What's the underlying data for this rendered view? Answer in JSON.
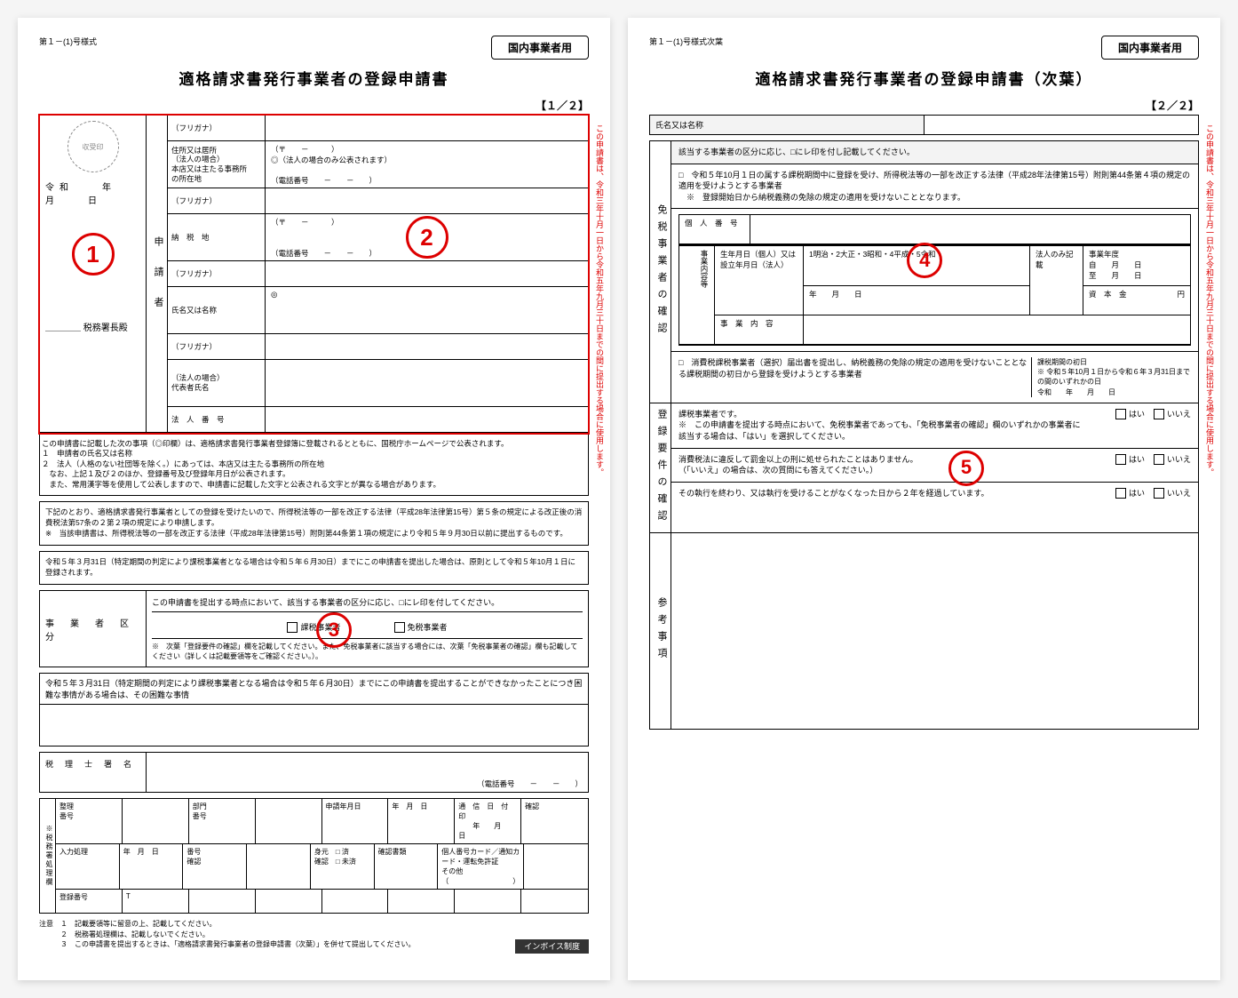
{
  "page1": {
    "form_id": "第１－(1)号様式",
    "tag": "国内事業者用",
    "title": "適格請求書発行事業者の登録申請書",
    "bracket": "【１／２】",
    "stamp_label": "収受印",
    "date_line": "令和　　年　　月　　日",
    "circle1": "1",
    "tax_office_line": "＿＿＿＿ 税務署長殿",
    "vlabel_applicant": "申　請　者",
    "vlabel_right_red": "この申請書は、令和三年十月一日から令和五年九月三十日までの間に提出する場合に使用します。",
    "rows": [
      {
        "f": "（フリガナ）",
        "v": ""
      },
      {
        "f": "住所又は居所\n（法人の場合）\n本店又は主たる事務所\nの所在地",
        "v": "（〒　　－　　　）\n◎（法人の場合のみ公表されます）",
        "phone": "（電話番号　　－　　－　　）",
        "tall": true
      },
      {
        "f": "（フリガナ）",
        "v": ""
      },
      {
        "f": "納　税　地",
        "v": "（〒　　－　　　）",
        "phone": "（電話番号　　－　　－　　）",
        "circle": "2",
        "tall": true
      },
      {
        "f": "（フリガナ）",
        "v": ""
      },
      {
        "f": "氏名又は名称",
        "v": "◎",
        "tall": true
      },
      {
        "f": "（フリガナ）",
        "v": ""
      },
      {
        "f": "（法人の場合）\n代表者氏名",
        "v": "",
        "tall": true
      },
      {
        "f": "法　人　番　号",
        "v": ""
      }
    ],
    "publish_note": "この申請書に記載した次の事項（◎印欄）は、適格請求書発行事業者登録簿に登載されるとともに、国税庁ホームページで公表されます。\n１　申請者の氏名又は名称\n２　法人（人格のない社団等を除く。）にあっては、本店又は主たる事務所の所在地\n　なお、上記１及び２のほか、登録番号及び登録年月日が公表されます。\n　また、常用漢字等を使用して公表しますので、申請書に記載した文字と公表される文字とが異なる場合があります。",
    "apply_note": "下記のとおり、適格請求書発行事業者としての登録を受けたいので、所得税法等の一部を改正する法律（平成28年法律第15号）第５条の規定による改正後の消費税法第57条の２第２項の規定により申請します。\n※　当該申請書は、所得税法等の一部を改正する法律（平成28年法律第15号）附則第44条第１項の規定により令和５年９月30日以前に提出するものです。",
    "deadline_note": "令和５年３月31日（特定期間の判定により課税事業者となる場合は令和５年６月30日）までにこの申請書を提出した場合は、原則として令和５年10月１日に登録されます。",
    "classify_label": "事　業　者　区　分",
    "classify_head": "この申請書を提出する時点において、該当する事業者の区分に応じ、□にレ印を付してください。",
    "classify_opts": [
      "課税事業者",
      "免税事業者"
    ],
    "classify_circle": "3",
    "classify_foot": "※　次葉「登録要件の確認」欄を記載してください。また、免税事業者に該当する場合には、次葉「免税事業者の確認」欄も記載してください（詳しくは記載要領等をご確認ください。）。",
    "hardship_label": "令和５年３月31日（特定期間の判定により課税事業者となる場合は令和５年６月30日）までにこの申請書を提出することができなかったことにつき困難な事情がある場合は、その困難な事情",
    "agent_label": "税　理　士　署　名",
    "agent_phone": "（電話番号　　－　　－　　）",
    "office_side": "※税務署処理欄",
    "office_rows": [
      [
        "整理\n番号",
        "",
        "部門\n番号",
        "",
        "申請年月日",
        "年　月　日",
        "通　信　日　付　印\n　　年　　月　　日",
        "確認"
      ],
      [
        "入力処理",
        "年　月　日",
        "番号\n確認",
        "",
        "身元　□ 済\n確認　□ 未済",
        "確認書類",
        "個人番号カード／通知カード・運転免許証\nその他（　　　　　　　　　）",
        ""
      ],
      [
        "登録番号",
        "T",
        "",
        "",
        "",
        "",
        "",
        ""
      ]
    ],
    "footnotes": "注意　１　記載要領等に留意の上、記載してください。\n　　　２　税務署処理欄は、記載しないでください。\n　　　３　この申請書を提出するときは、「適格請求書発行事業者の登録申請書（次葉）」を併せて提出してください。",
    "invoice_badge": "インボイス制度"
  },
  "page2": {
    "form_id": "第１－(1)号様式次葉",
    "tag": "国内事業者用",
    "title": "適格請求書発行事業者の登録申請書（次葉）",
    "bracket": "【２／２】",
    "vlabel_right_red": "この申請書は、令和三年十月一日から令和五年九月三十日までの間に提出する場合に使用します。",
    "head_name_label": "氏名又は名称",
    "head_note": "該当する事業者の区分に応じ、□にレ印を付し記載してください。",
    "side_labels": [
      "免税事業者の確認",
      "登録要件の確認",
      "参考事項"
    ],
    "sec_exempt": "□　令和５年10月１日の属する課税期間中に登録を受け、所得税法等の一部を改正する法律（平成28年法律第15号）附則第44条第４項の規定の適用を受けようとする事業者\n　※　登録開始日から納税義務の免除の規定の適用を受けないこととなります。",
    "sec_exempt_lines": {
      "indiv_num": "個　人　番　号",
      "biz_content_head": "事業内容等",
      "birth": "生年月日（個人）又は設立年月日（法人）",
      "eras": "1明治・2大正・3昭和・4平成・5令和",
      "ymd": "年　　月　　日",
      "corp_only": "法人のみ記載",
      "fy": "事業年度",
      "from": "自　　月　　日",
      "to": "至　　月　　日",
      "capital": "資　本　金",
      "yen": "円",
      "biz": "事　業　内　容"
    },
    "circle4": "4",
    "sec_exempt2": "□　消費税課税事業者（選択）届出書を提出し、納税義務の免除の規定の適用を受けないこととなる課税期間の初日から登録を受けようとする事業者",
    "sec_exempt2_right": "課税期間の初日\n※ 令和５年10月１日から令和６年３月31日までの間のいずれかの日\n令和　　年　　月　　日",
    "reg_q1": "課税事業者です。\n※　この申請書を提出する時点において、免税事業者であっても、「免税事業者の確認」欄のいずれかの事業者に該当する場合は、「はい」を選択してください。",
    "reg_q2": "消費税法に違反して罰金以上の刑に処せられたことはありません。\n（「いいえ」の場合は、次の質問にも答えてください。）",
    "reg_q3": "その執行を終わり、又は執行を受けることがなくなった日から２年を経過しています。",
    "circle5": "5",
    "yes": "はい",
    "no": "いいえ"
  }
}
